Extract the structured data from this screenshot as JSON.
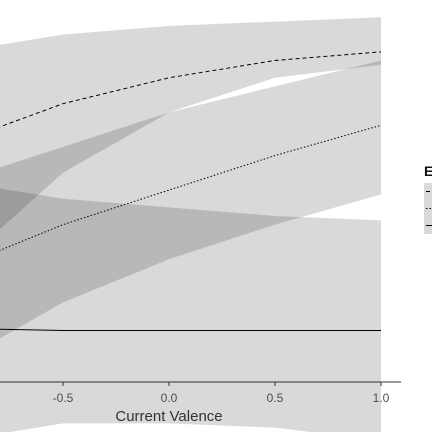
{
  "chart_data": {
    "type": "line",
    "xlabel": "Current Valence",
    "x_ticks": [
      "-0.5",
      "0.0",
      "0.5",
      "1.0"
    ],
    "xlim": [
      -1.0,
      1.0
    ],
    "legend_title": "E",
    "legend_placement": "right",
    "grid": false,
    "band_color": "#d9d9d9",
    "band_overlap_color": "#bdbdbd",
    "line_color": "#000000",
    "series": [
      {
        "linestyle": "dashed",
        "x": [
          -1.0,
          -0.5,
          0.0,
          0.5,
          1.0
        ],
        "y": [
          0.67,
          0.76,
          0.82,
          0.86,
          0.88
        ],
        "lower": [
          0.38,
          0.6,
          0.74,
          0.82,
          0.85
        ],
        "upper": [
          0.88,
          0.92,
          0.94,
          0.95,
          0.96
        ]
      },
      {
        "linestyle": "dotted",
        "x": [
          -1.0,
          -0.5,
          0.0,
          0.5,
          1.0
        ],
        "y": [
          0.38,
          0.48,
          0.56,
          0.64,
          0.71
        ],
        "lower": [
          0.16,
          0.3,
          0.4,
          0.48,
          0.55
        ],
        "upper": [
          0.58,
          0.66,
          0.74,
          0.8,
          0.86
        ]
      },
      {
        "linestyle": "solid",
        "x": [
          -1.0,
          -0.5,
          0.0,
          0.5,
          1.0
        ],
        "y": [
          0.24,
          0.235,
          0.235,
          0.235,
          0.235
        ],
        "lower": [
          -0.02,
          0.02,
          0.02,
          0.01,
          -0.02
        ],
        "upper": [
          0.58,
          0.54,
          0.52,
          0.5,
          0.49
        ]
      }
    ]
  }
}
